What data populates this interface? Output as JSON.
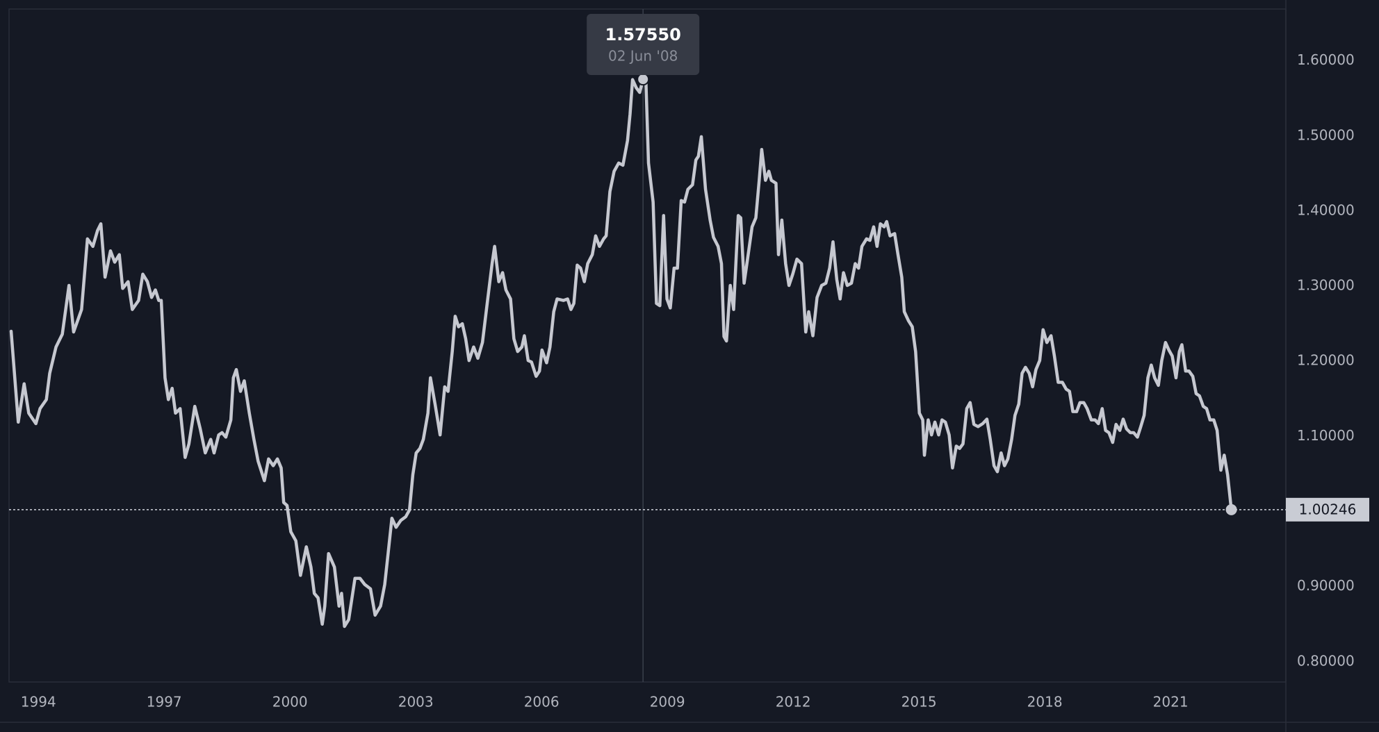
{
  "chart_data": {
    "type": "line",
    "color": "#c6c8d0",
    "grid": false,
    "xlim": [
      1993.3,
      2023.75
    ],
    "ylim": [
      0.773,
      1.669
    ],
    "xticks": [
      1994,
      1997,
      2000,
      2003,
      2006,
      2009,
      2012,
      2015,
      2018,
      2021
    ],
    "yticks": [
      {
        "value": 0.8,
        "label": "0.80000"
      },
      {
        "value": 0.9,
        "label": "0.90000"
      },
      {
        "value": 1.0,
        "label": "1.00000"
      },
      {
        "value": 1.1,
        "label": "1.10000"
      },
      {
        "value": 1.2,
        "label": "1.20000"
      },
      {
        "value": 1.3,
        "label": "1.30000"
      },
      {
        "value": 1.4,
        "label": "1.40000"
      },
      {
        "value": 1.5,
        "label": "1.50000"
      },
      {
        "value": 1.6,
        "label": "1.60000"
      }
    ],
    "tooltip": {
      "x": 2008.42,
      "value": 1.5755,
      "label": "1.57550",
      "date": "02 Jun '08"
    },
    "current_price": {
      "value": 1.00246,
      "label": "1.00246"
    },
    "x": [
      1993.35,
      1993.52,
      1993.66,
      1993.77,
      1993.94,
      1994.04,
      1994.19,
      1994.27,
      1994.42,
      1994.57,
      1994.73,
      1994.84,
      1995.03,
      1995.17,
      1995.3,
      1995.41,
      1995.49,
      1995.59,
      1995.72,
      1995.82,
      1995.93,
      1996.01,
      1996.14,
      1996.24,
      1996.39,
      1996.49,
      1996.6,
      1996.7,
      1996.79,
      1996.87,
      1996.93,
      1997.02,
      1997.1,
      1997.19,
      1997.27,
      1997.38,
      1997.5,
      1997.59,
      1997.73,
      1997.86,
      1997.98,
      1998.11,
      1998.19,
      1998.3,
      1998.38,
      1998.47,
      1998.59,
      1998.65,
      1998.72,
      1998.82,
      1998.91,
      1999.03,
      1999.14,
      1999.24,
      1999.39,
      1999.49,
      1999.6,
      1999.7,
      1999.79,
      1999.85,
      1999.93,
      2000.02,
      2000.14,
      2000.25,
      2000.39,
      2000.5,
      2000.58,
      2000.67,
      2000.77,
      2000.83,
      2000.92,
      2001.06,
      2001.17,
      2001.23,
      2001.3,
      2001.4,
      2001.55,
      2001.67,
      2001.78,
      2001.92,
      2002.03,
      2002.16,
      2002.26,
      2002.34,
      2002.43,
      2002.53,
      2002.64,
      2002.76,
      2002.85,
      2002.93,
      2003.01,
      2003.1,
      2003.18,
      2003.29,
      2003.35,
      2003.46,
      2003.58,
      2003.69,
      2003.77,
      2003.87,
      2003.94,
      2004.02,
      2004.11,
      2004.19,
      2004.27,
      2004.38,
      2004.48,
      2004.59,
      2004.69,
      2004.82,
      2004.88,
      2004.98,
      2005.07,
      2005.15,
      2005.26,
      2005.34,
      2005.43,
      2005.53,
      2005.59,
      2005.68,
      2005.76,
      2005.87,
      2005.95,
      2006.01,
      2006.12,
      2006.2,
      2006.29,
      2006.37,
      2006.52,
      2006.62,
      2006.7,
      2006.77,
      2006.85,
      2006.93,
      2007.02,
      2007.1,
      2007.21,
      2007.29,
      2007.38,
      2007.48,
      2007.54,
      2007.63,
      2007.73,
      2007.84,
      2007.94,
      2008.05,
      2008.11,
      2008.17,
      2008.26,
      2008.34,
      2008.42,
      2008.49,
      2008.55,
      2008.66,
      2008.74,
      2008.82,
      2008.91,
      2008.99,
      2009.07,
      2009.16,
      2009.24,
      2009.33,
      2009.41,
      2009.49,
      2009.6,
      2009.68,
      2009.74,
      2009.81,
      2009.91,
      2010.02,
      2010.1,
      2010.21,
      2010.29,
      2010.35,
      2010.41,
      2010.5,
      2010.58,
      2010.69,
      2010.75,
      2010.83,
      2010.94,
      2011.02,
      2011.11,
      2011.19,
      2011.25,
      2011.34,
      2011.42,
      2011.48,
      2011.59,
      2011.65,
      2011.73,
      2011.82,
      2011.9,
      2011.99,
      2012.09,
      2012.2,
      2012.3,
      2012.37,
      2012.47,
      2012.57,
      2012.68,
      2012.78,
      2012.87,
      2012.95,
      2013.04,
      2013.12,
      2013.2,
      2013.29,
      2013.39,
      2013.48,
      2013.56,
      2013.64,
      2013.75,
      2013.83,
      2013.92,
      2014.0,
      2014.08,
      2014.17,
      2014.23,
      2014.31,
      2014.42,
      2014.5,
      2014.59,
      2014.65,
      2014.75,
      2014.84,
      2014.92,
      2015.01,
      2015.09,
      2015.13,
      2015.22,
      2015.3,
      2015.38,
      2015.47,
      2015.55,
      2015.63,
      2015.72,
      2015.8,
      2015.89,
      2015.97,
      2016.05,
      2016.14,
      2016.22,
      2016.31,
      2016.41,
      2016.52,
      2016.62,
      2016.7,
      2016.79,
      2016.87,
      2016.96,
      2017.04,
      2017.12,
      2017.21,
      2017.29,
      2017.38,
      2017.46,
      2017.54,
      2017.63,
      2017.71,
      2017.79,
      2017.88,
      2017.96,
      2018.05,
      2018.15,
      2018.23,
      2018.32,
      2018.42,
      2018.51,
      2018.59,
      2018.67,
      2018.76,
      2018.84,
      2018.93,
      2019.01,
      2019.11,
      2019.2,
      2019.28,
      2019.37,
      2019.45,
      2019.53,
      2019.62,
      2019.7,
      2019.79,
      2019.87,
      2019.95,
      2020.04,
      2020.12,
      2020.21,
      2020.29,
      2020.37,
      2020.46,
      2020.54,
      2020.62,
      2020.71,
      2020.79,
      2020.88,
      2020.96,
      2021.04,
      2021.13,
      2021.21,
      2021.27,
      2021.36,
      2021.44,
      2021.53,
      2021.61,
      2021.69,
      2021.78,
      2021.86,
      2021.94,
      2022.03,
      2022.11,
      2022.2,
      2022.28,
      2022.36,
      2022.45
    ],
    "values": [
      1.24,
      1.119,
      1.17,
      1.131,
      1.117,
      1.137,
      1.149,
      1.184,
      1.219,
      1.236,
      1.301,
      1.239,
      1.269,
      1.363,
      1.353,
      1.374,
      1.383,
      1.312,
      1.347,
      1.332,
      1.342,
      1.297,
      1.306,
      1.269,
      1.281,
      1.316,
      1.306,
      1.285,
      1.295,
      1.281,
      1.281,
      1.178,
      1.149,
      1.164,
      1.131,
      1.137,
      1.072,
      1.09,
      1.14,
      1.11,
      1.078,
      1.096,
      1.078,
      1.102,
      1.105,
      1.099,
      1.122,
      1.178,
      1.189,
      1.16,
      1.174,
      1.131,
      1.096,
      1.067,
      1.041,
      1.07,
      1.061,
      1.07,
      1.058,
      1.012,
      1.008,
      0.973,
      0.961,
      0.915,
      0.953,
      0.926,
      0.891,
      0.885,
      0.85,
      0.874,
      0.944,
      0.926,
      0.874,
      0.891,
      0.847,
      0.856,
      0.911,
      0.911,
      0.903,
      0.897,
      0.862,
      0.874,
      0.903,
      0.944,
      0.991,
      0.979,
      0.988,
      0.993,
      1.002,
      1.049,
      1.078,
      1.084,
      1.096,
      1.131,
      1.178,
      1.143,
      1.102,
      1.166,
      1.16,
      1.213,
      1.26,
      1.246,
      1.25,
      1.23,
      1.201,
      1.219,
      1.204,
      1.225,
      1.271,
      1.33,
      1.353,
      1.306,
      1.318,
      1.295,
      1.283,
      1.23,
      1.213,
      1.219,
      1.234,
      1.201,
      1.199,
      1.18,
      1.187,
      1.215,
      1.198,
      1.219,
      1.266,
      1.283,
      1.281,
      1.283,
      1.269,
      1.277,
      1.328,
      1.324,
      1.306,
      1.33,
      1.342,
      1.367,
      1.353,
      1.363,
      1.367,
      1.426,
      1.453,
      1.464,
      1.461,
      1.494,
      1.529,
      1.575,
      1.564,
      1.558,
      1.5755,
      1.57,
      1.464,
      1.412,
      1.277,
      1.274,
      1.394,
      1.283,
      1.271,
      1.324,
      1.324,
      1.414,
      1.412,
      1.429,
      1.435,
      1.468,
      1.473,
      1.499,
      1.429,
      1.388,
      1.365,
      1.353,
      1.33,
      1.233,
      1.227,
      1.301,
      1.269,
      1.394,
      1.391,
      1.304,
      1.347,
      1.379,
      1.391,
      1.441,
      1.482,
      1.441,
      1.453,
      1.441,
      1.437,
      1.342,
      1.388,
      1.33,
      1.301,
      1.316,
      1.336,
      1.33,
      1.239,
      1.266,
      1.234,
      1.285,
      1.301,
      1.304,
      1.324,
      1.359,
      1.309,
      1.283,
      1.318,
      1.301,
      1.304,
      1.33,
      1.324,
      1.353,
      1.363,
      1.361,
      1.379,
      1.353,
      1.383,
      1.379,
      1.386,
      1.367,
      1.37,
      1.342,
      1.312,
      1.266,
      1.254,
      1.246,
      1.213,
      1.131,
      1.122,
      1.075,
      1.122,
      1.102,
      1.119,
      1.102,
      1.122,
      1.119,
      1.102,
      1.058,
      1.087,
      1.084,
      1.09,
      1.137,
      1.145,
      1.116,
      1.113,
      1.117,
      1.123,
      1.096,
      1.061,
      1.053,
      1.078,
      1.061,
      1.07,
      1.096,
      1.128,
      1.143,
      1.184,
      1.192,
      1.184,
      1.166,
      1.189,
      1.201,
      1.242,
      1.225,
      1.234,
      1.207,
      1.172,
      1.172,
      1.163,
      1.16,
      1.133,
      1.133,
      1.145,
      1.145,
      1.137,
      1.122,
      1.122,
      1.117,
      1.137,
      1.108,
      1.105,
      1.092,
      1.116,
      1.108,
      1.123,
      1.11,
      1.105,
      1.105,
      1.099,
      1.113,
      1.128,
      1.178,
      1.195,
      1.178,
      1.168,
      1.201,
      1.225,
      1.215,
      1.207,
      1.178,
      1.213,
      1.222,
      1.187,
      1.187,
      1.18,
      1.157,
      1.154,
      1.14,
      1.137,
      1.122,
      1.122,
      1.108,
      1.055,
      1.075,
      1.049,
      1.00246
    ]
  }
}
